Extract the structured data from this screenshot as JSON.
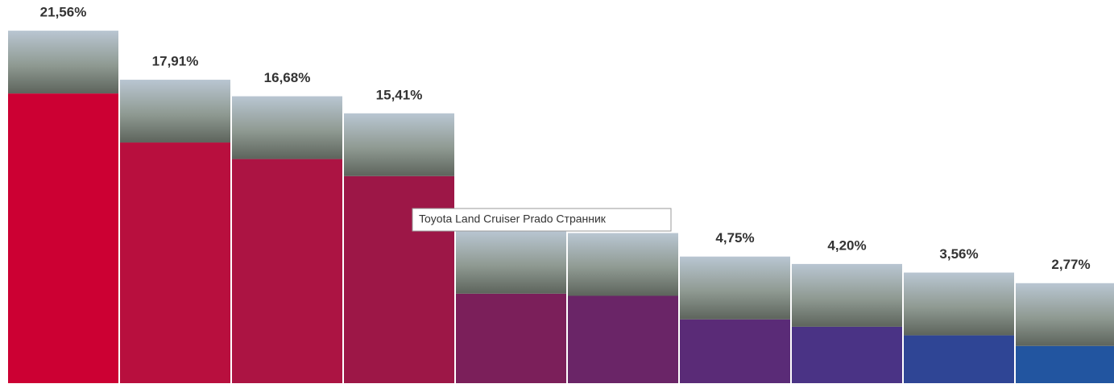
{
  "chart_data": {
    "type": "bar",
    "values": [
      21.56,
      17.91,
      16.68,
      15.41,
      6.66,
      6.5,
      4.75,
      4.2,
      3.56,
      2.77
    ],
    "value_labels": [
      "21,56%",
      "17,91%",
      "16,68%",
      "15,41%",
      null,
      null,
      "4,75%",
      "4,20%",
      "3,56%",
      "2,77%"
    ],
    "colors": [
      "#cc0033",
      "#b80f3e",
      "#ac1443",
      "#9d1747",
      "#7b1f5a",
      "#6a2567",
      "#5a2b77",
      "#4a3385",
      "#2f4595",
      "#2255a0"
    ],
    "ylim": [
      0,
      26
    ],
    "tooltip": "Toyota Land Cruiser Prado Странник"
  }
}
